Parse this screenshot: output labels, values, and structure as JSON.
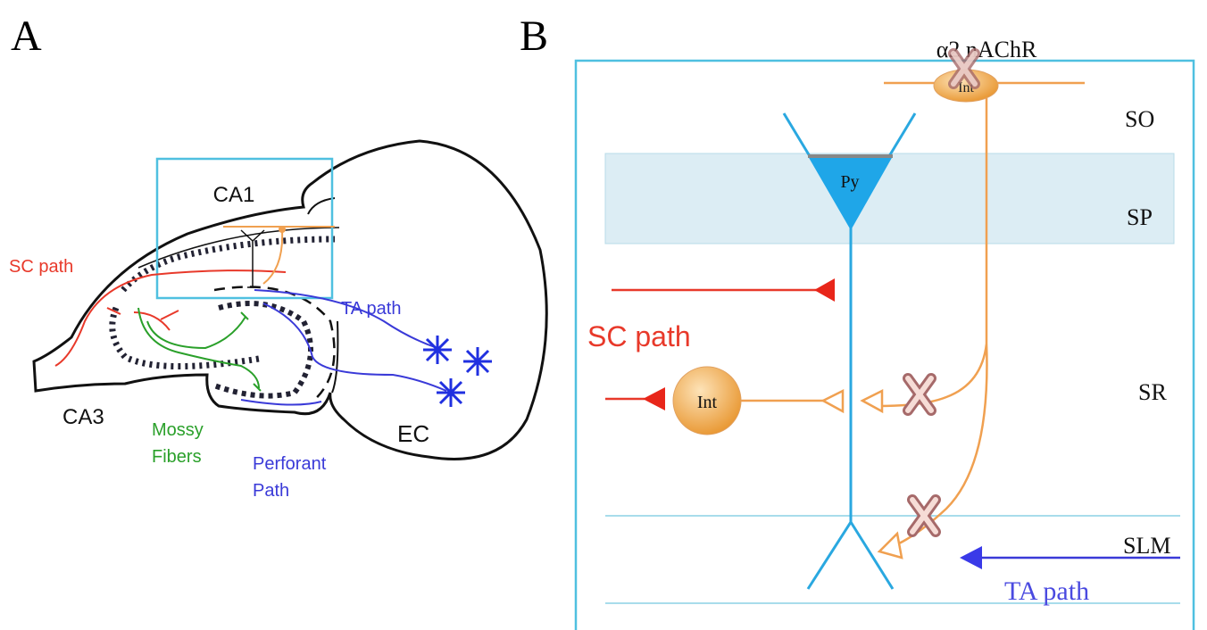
{
  "panel_a": {
    "label": "A",
    "ca1": "CA1",
    "sc_path": "SC path",
    "ta_path": "TA path",
    "ca3": "CA3",
    "mossy_fibers": [
      "Mossy",
      "Fibers"
    ],
    "perforant_path": [
      "Perforant",
      "Path"
    ],
    "ec": "EC"
  },
  "panel_b": {
    "label": "B",
    "receptor": "α2 nAChR",
    "int_top": "Int",
    "layers": {
      "so": "SO",
      "sp": "SP",
      "sr": "SR",
      "slm": "SLM"
    },
    "py": "Py",
    "sc_path": "SC path",
    "int_sr": "Int",
    "ta_path": "TA path"
  }
}
